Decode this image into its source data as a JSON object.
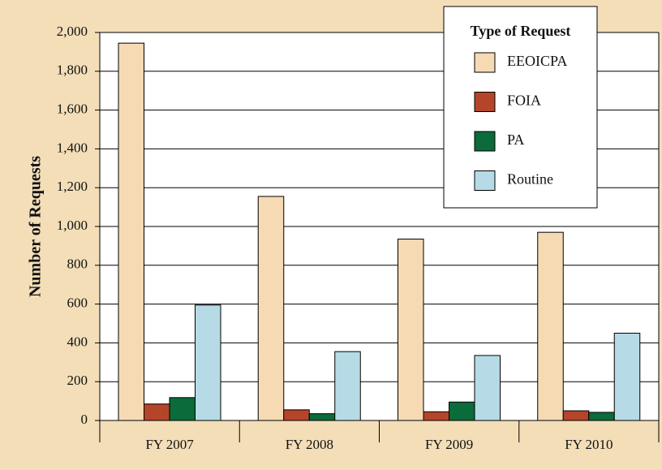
{
  "chart_data": {
    "type": "bar",
    "categories": [
      "FY 2007",
      "FY 2008",
      "FY 2009",
      "FY 2010"
    ],
    "y_label": "Number of Requests",
    "legend_title": "Type of Request",
    "legend": "upper right",
    "grid": true,
    "ylim": [
      0,
      2000
    ],
    "yticks": [
      0,
      200,
      400,
      600,
      800,
      {
        "value": 1000,
        "label": "1,000"
      },
      {
        "value": 1200,
        "label": "1,200"
      },
      {
        "value": 1400,
        "label": "1,400"
      },
      {
        "value": 1600,
        "label": "1,600"
      },
      {
        "value": 1800,
        "label": "1,800"
      },
      {
        "value": 2000,
        "label": "2,000"
      }
    ],
    "series": [
      {
        "name": "EEOICPA",
        "color": "#f5dab4",
        "values": [
          1945,
          1155,
          935,
          970
        ]
      },
      {
        "name": "FOIA",
        "color": "#b5452a",
        "values": [
          85,
          55,
          45,
          50
        ]
      },
      {
        "name": "PA",
        "color": "#0b6b3a",
        "values": [
          118,
          35,
          95,
          42
        ]
      },
      {
        "name": "Routine",
        "color": "#b6dbe6",
        "values": [
          595,
          355,
          335,
          450
        ]
      }
    ]
  }
}
